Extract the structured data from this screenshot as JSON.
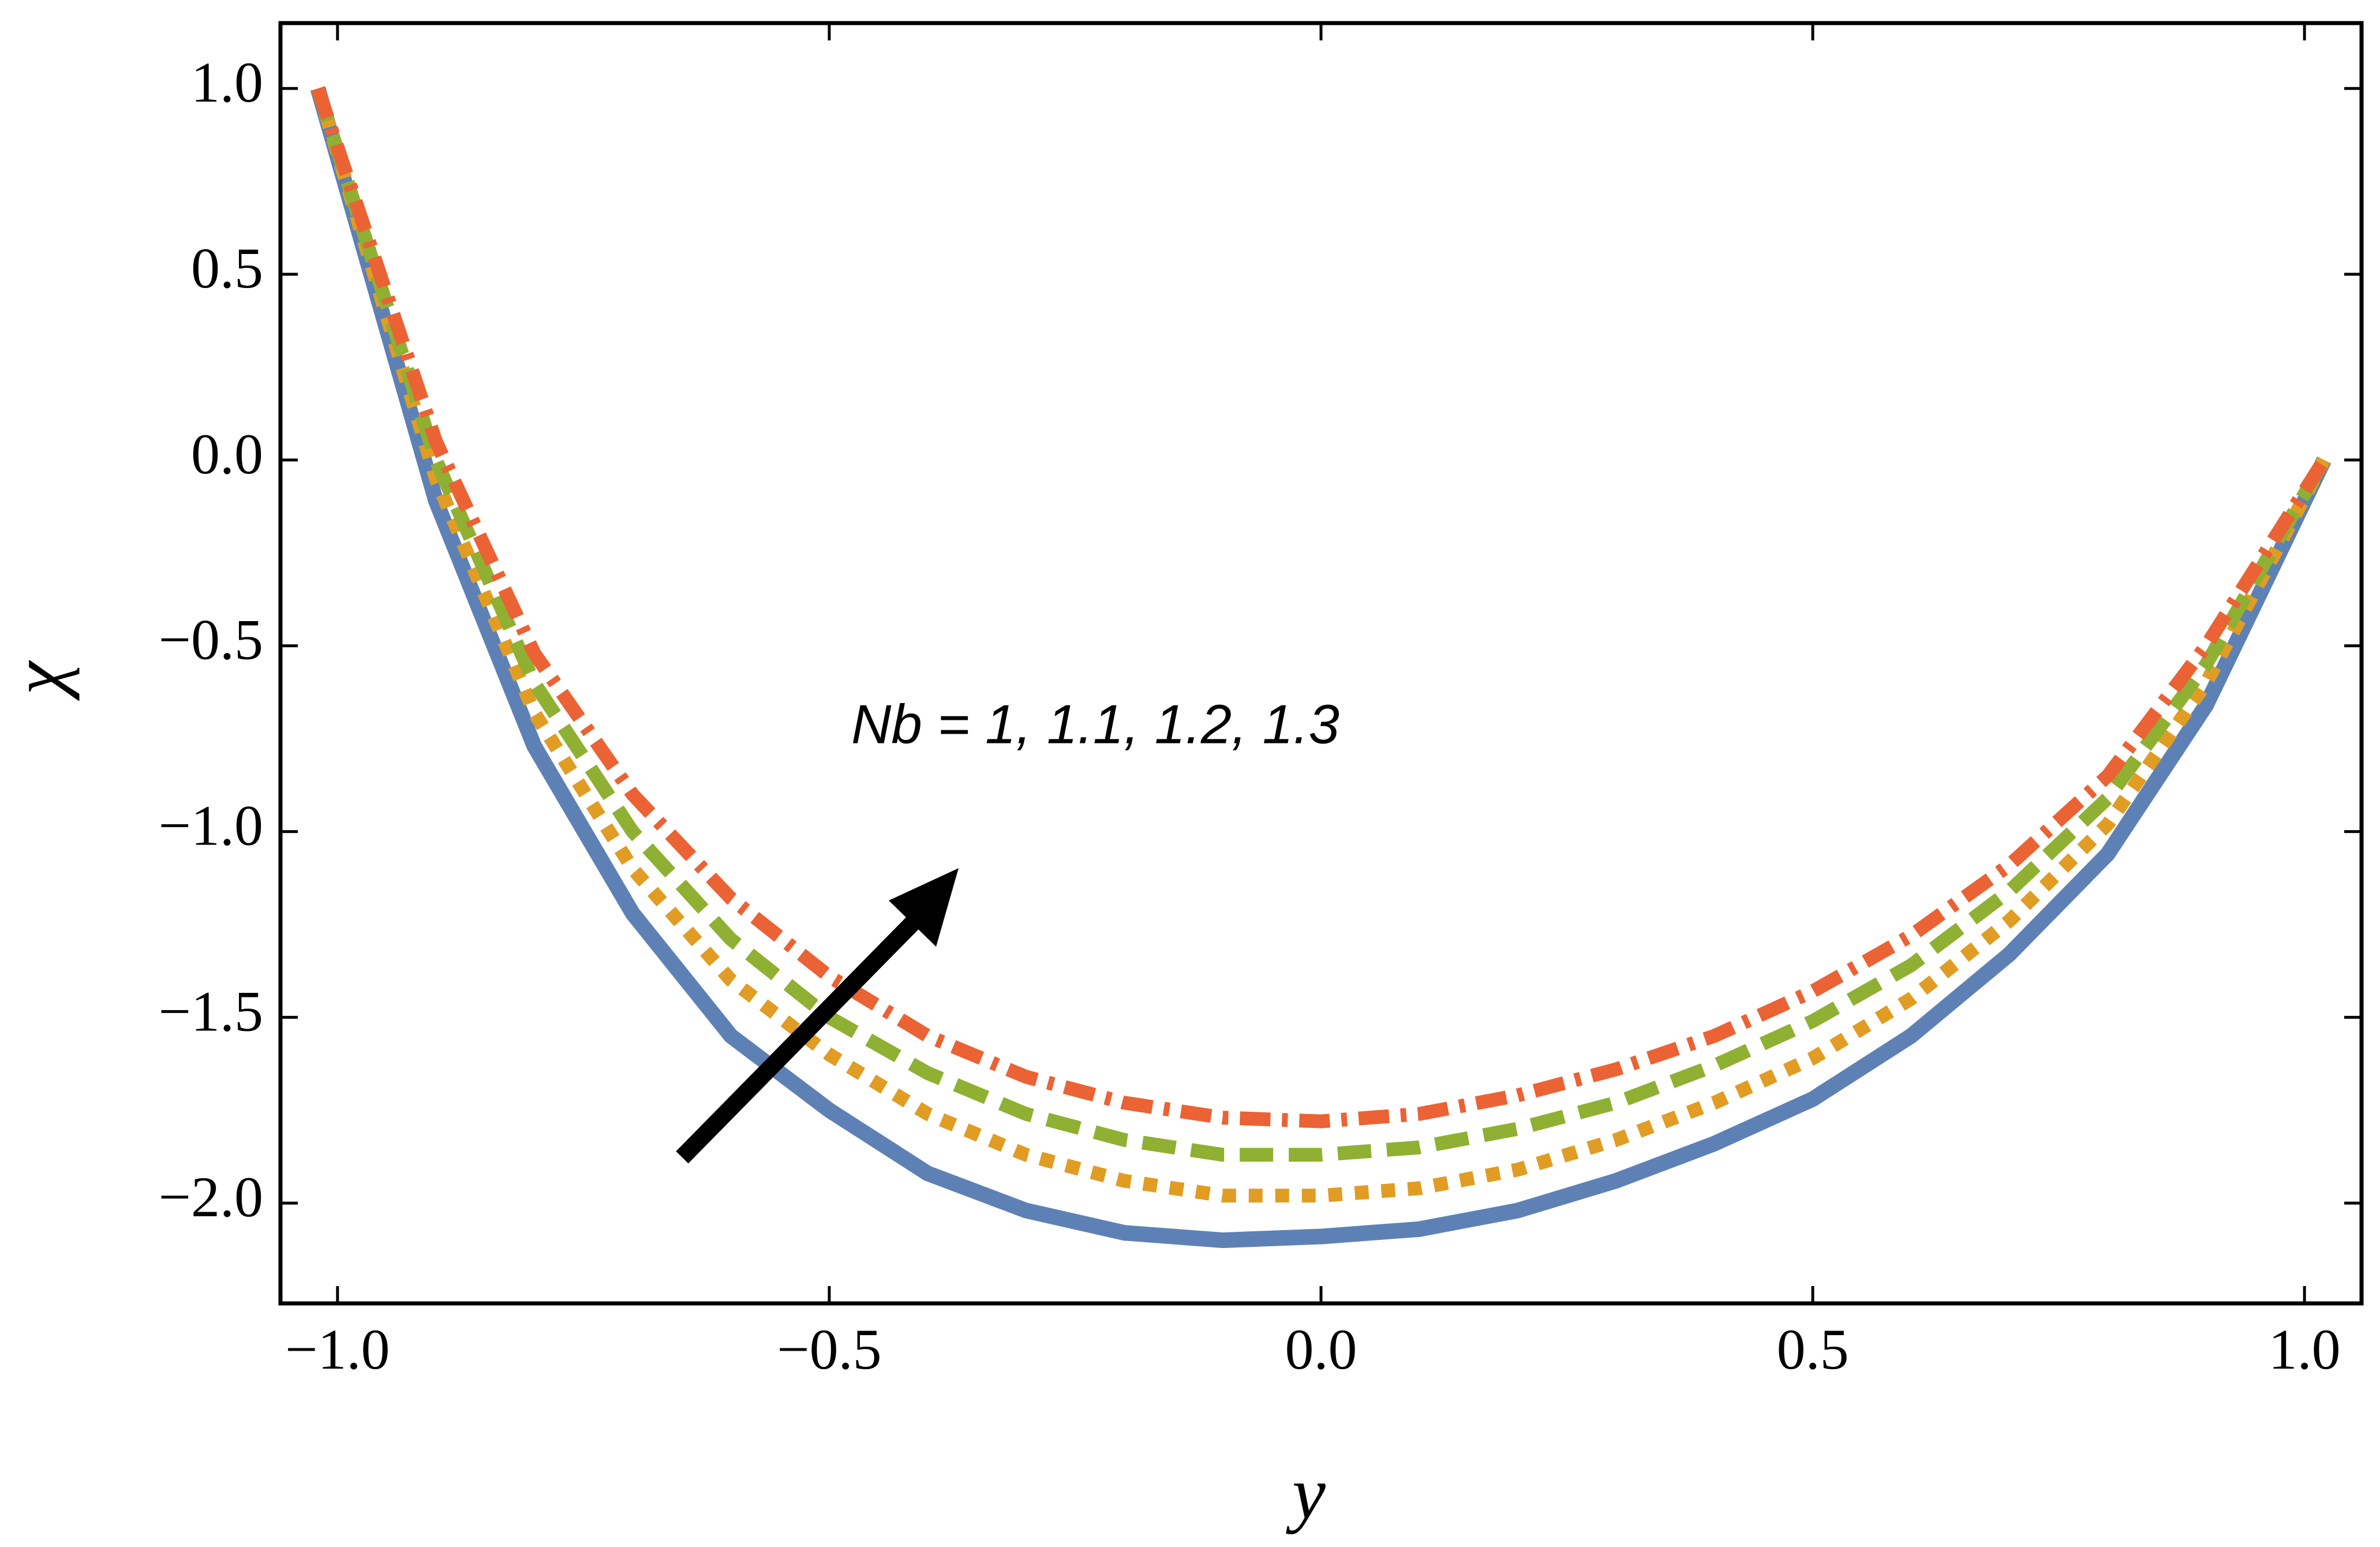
{
  "chart_data": {
    "type": "line",
    "x_label": "y",
    "y_label": "χ",
    "annotation": "Nb = 1, 1.1, 1.2, 1.3",
    "x": [
      -1.02,
      -0.9,
      -0.8,
      -0.7,
      -0.6,
      -0.5,
      -0.4,
      -0.3,
      -0.2,
      -0.1,
      0,
      0.1,
      0.2,
      0.3,
      0.4,
      0.5,
      0.6,
      0.7,
      0.8,
      0.9,
      1.02
    ],
    "series": [
      {
        "color": "#5e81b5",
        "line_style": "solid",
        "values": [
          1.0,
          -0.11,
          -0.77,
          -1.22,
          -1.55,
          -1.75,
          -1.92,
          -2.02,
          -2.08,
          -2.1,
          -2.09,
          -2.07,
          -2.02,
          -1.94,
          -1.84,
          -1.72,
          -1.55,
          -1.33,
          -1.06,
          -0.66,
          0
        ]
      },
      {
        "color": "#e19c24",
        "line_style": "dotted",
        "values": [
          1.0,
          -0.05,
          -0.68,
          -1.1,
          -1.4,
          -1.6,
          -1.76,
          -1.87,
          -1.94,
          -1.98,
          -1.98,
          -1.96,
          -1.91,
          -1.83,
          -1.73,
          -1.61,
          -1.45,
          -1.24,
          -0.98,
          -0.6,
          0
        ]
      },
      {
        "color": "#8fb032",
        "line_style": "dashed",
        "values": [
          1.0,
          0.0,
          -0.6,
          -1.0,
          -1.29,
          -1.5,
          -1.65,
          -1.76,
          -1.83,
          -1.87,
          -1.87,
          -1.85,
          -1.8,
          -1.73,
          -1.63,
          -1.51,
          -1.36,
          -1.16,
          -0.91,
          -0.55,
          0
        ]
      },
      {
        "color": "#eb6235",
        "line_style": "dashdot",
        "values": [
          1.0,
          0.05,
          -0.52,
          -0.9,
          -1.18,
          -1.39,
          -1.55,
          -1.66,
          -1.73,
          -1.77,
          -1.78,
          -1.76,
          -1.71,
          -1.64,
          -1.55,
          -1.43,
          -1.28,
          -1.09,
          -0.85,
          -0.5,
          0
        ]
      }
    ],
    "xlim": [
      -1.058,
      1.058
    ],
    "ylim": [
      -2.27,
      1.176
    ],
    "xticks": [
      {
        "value": -1,
        "label": "−1.0"
      },
      {
        "value": -0.5,
        "label": "−0.5"
      },
      {
        "value": 0,
        "label": "0.0"
      },
      {
        "value": 0.5,
        "label": "0.5"
      },
      {
        "value": 1,
        "label": "1.0"
      }
    ],
    "yticks": [
      {
        "value": 1,
        "label": "1.0"
      },
      {
        "value": 0.5,
        "label": "0.5"
      },
      {
        "value": 0,
        "label": "0.0"
      },
      {
        "value": -0.5,
        "label": "−0.5"
      },
      {
        "value": -1,
        "label": "−1.0"
      },
      {
        "value": -1.5,
        "label": "−1.5"
      },
      {
        "value": -2,
        "label": "−2.0"
      }
    ],
    "grid": false
  }
}
